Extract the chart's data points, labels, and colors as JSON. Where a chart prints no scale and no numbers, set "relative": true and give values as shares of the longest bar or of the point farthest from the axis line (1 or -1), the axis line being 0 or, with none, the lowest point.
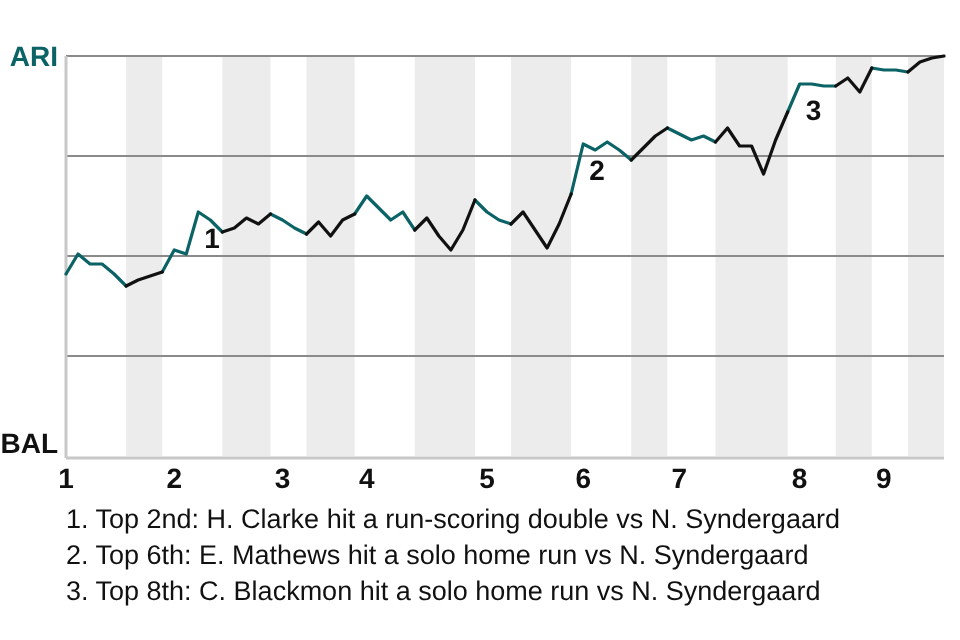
{
  "chart_data": {
    "type": "line",
    "relative": true,
    "marker": "none",
    "line_style": "solid",
    "categories": [
      "1",
      null,
      null,
      null,
      null,
      null,
      null,
      null,
      null,
      "2",
      null,
      null,
      null,
      null,
      null,
      null,
      null,
      null,
      "3",
      null,
      null,
      null,
      null,
      null,
      null,
      "4",
      null,
      null,
      null,
      null,
      null,
      null,
      null,
      null,
      null,
      "5",
      null,
      null,
      null,
      null,
      null,
      null,
      null,
      "6",
      null,
      null,
      null,
      null,
      null,
      null,
      null,
      "7",
      null,
      null,
      null,
      null,
      null,
      null,
      null,
      null,
      null,
      "8",
      null,
      null,
      null,
      null,
      null,
      null,
      "9",
      null,
      null,
      null,
      null,
      null
    ],
    "ref_lines": [
      {
        "axis": "y",
        "value": 1,
        "color": "#8a8a8a"
      },
      {
        "axis": "y",
        "value": 0.75,
        "color": "#8a8a8a"
      },
      {
        "axis": "y",
        "value": 0.5,
        "color": "#8a8a8a"
      },
      {
        "axis": "y",
        "value": 0.25,
        "color": "#8a8a8a"
      }
    ],
    "series": [
      {
        "name": "ARI",
        "color": "#0b6366",
        "values": [
          0.455,
          0.505,
          0.48,
          0.48,
          0.455,
          0.425,
          null,
          null,
          0.46,
          0.515,
          0.505,
          0.61,
          0.59,
          0.56,
          null,
          null,
          null,
          0.605,
          0.59,
          0.57,
          0.555,
          null,
          null,
          null,
          0.605,
          0.65,
          0.62,
          0.59,
          0.61,
          0.565,
          null,
          null,
          null,
          null,
          0.64,
          0.61,
          0.59,
          0.58,
          null,
          null,
          null,
          null,
          0.655,
          0.78,
          0.765,
          0.785,
          0.765,
          0.74,
          null,
          null,
          0.82,
          0.805,
          0.79,
          0.8,
          0.785,
          null,
          null,
          null,
          null,
          null,
          0.86,
          0.93,
          0.93,
          0.925,
          0.925,
          null,
          null,
          0.97,
          0.965,
          0.965,
          0.96,
          null,
          null,
          null
        ]
      },
      {
        "name": "BAL",
        "color": "#111111",
        "values": [
          null,
          null,
          null,
          null,
          null,
          0.425,
          0.44,
          0.45,
          0.46,
          null,
          null,
          null,
          null,
          0.56,
          0.57,
          0.595,
          0.58,
          0.605,
          null,
          null,
          0.555,
          0.585,
          0.55,
          0.59,
          0.605,
          null,
          null,
          null,
          null,
          0.565,
          0.595,
          0.55,
          0.515,
          0.565,
          0.64,
          null,
          null,
          0.58,
          0.61,
          0.565,
          0.52,
          0.58,
          0.655,
          null,
          null,
          null,
          null,
          0.74,
          0.77,
          0.8,
          0.82,
          null,
          null,
          null,
          0.785,
          0.82,
          0.775,
          0.775,
          0.705,
          0.79,
          0.86,
          null,
          null,
          null,
          0.925,
          0.945,
          0.91,
          0.97,
          null,
          null,
          0.96,
          0.985,
          0.995,
          1
        ]
      }
    ],
    "annotations": [
      {
        "text": "1",
        "y": 0.61
      },
      {
        "text": "2",
        "y": 0.78
      },
      {
        "text": "3",
        "y": 0.93
      },
      "1. Top 2nd: H. Clarke hit a run-scoring double vs N. Syndergaard",
      "2. Top 6th: E. Mathews hit a solo home run vs N. Syndergaard",
      "3. Top 8th: C. Blackmon hit a solo home run vs N. Syndergaard"
    ]
  }
}
